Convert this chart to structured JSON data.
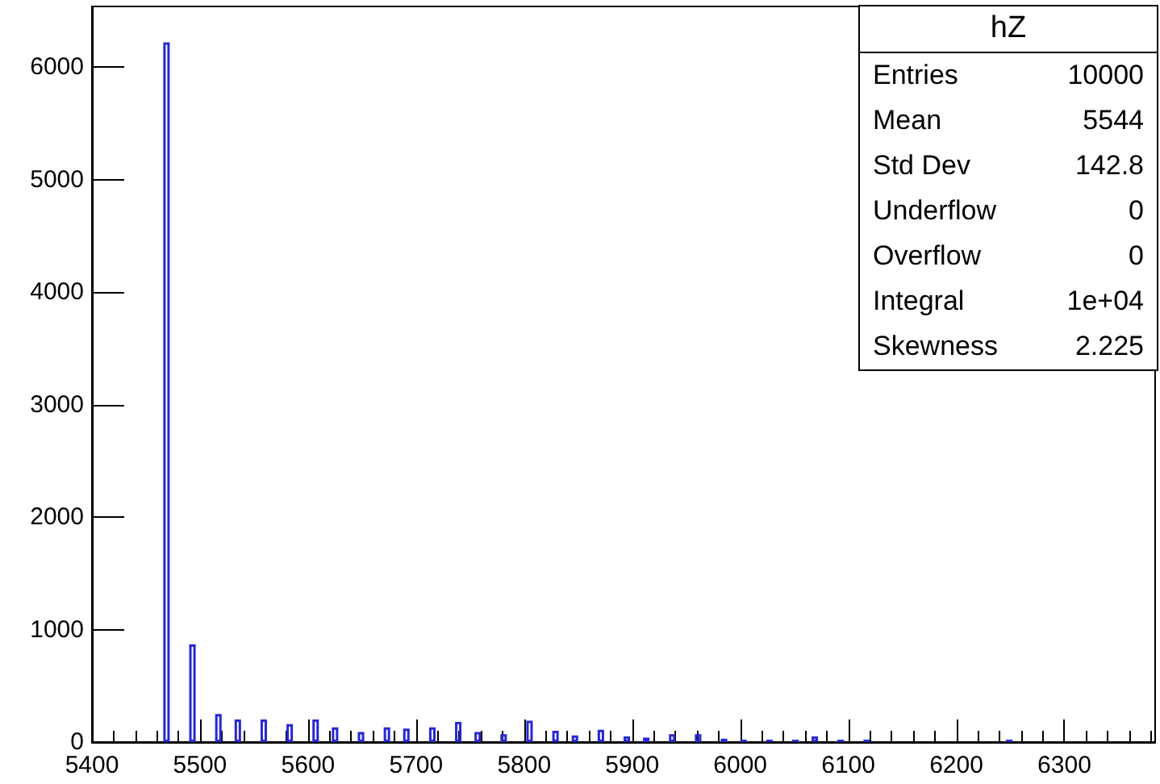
{
  "chart_data": {
    "type": "histogram",
    "bins": [
      5466,
      5472,
      5490,
      5496,
      5514,
      5520,
      5532,
      5538,
      5556,
      5562,
      5580,
      5586,
      5604,
      5610,
      5622,
      5628,
      5646,
      5652,
      5670,
      5676,
      5688,
      5694,
      5712,
      5718,
      5736,
      5742,
      5754,
      5760,
      5778,
      5784,
      5802,
      5808,
      5826,
      5832,
      5844,
      5850,
      5868,
      5874,
      5892,
      5898,
      5910,
      5916,
      5934,
      5940,
      5958,
      5964,
      5982,
      5988,
      6000,
      6006,
      6024,
      6030,
      6048,
      6054,
      6066,
      6072,
      6090,
      6096,
      6114,
      6120,
      6246,
      6252
    ],
    "values": [
      6220,
      0,
      870,
      0,
      250,
      0,
      200,
      0,
      200,
      0,
      160,
      0,
      200,
      0,
      130,
      0,
      90,
      0,
      130,
      0,
      120,
      0,
      130,
      0,
      180,
      0,
      90,
      0,
      70,
      0,
      190,
      0,
      100,
      0,
      60,
      0,
      110,
      0,
      50,
      0,
      40,
      0,
      70,
      0,
      70,
      0,
      30,
      0,
      20,
      0,
      20,
      0,
      20,
      0,
      50,
      0,
      20,
      0,
      20,
      0,
      20
    ],
    "color": "#2828d2",
    "xlim": [
      5400,
      6384
    ],
    "xticks": [
      5400,
      5500,
      5600,
      5700,
      5800,
      5900,
      6000,
      6100,
      6200,
      6300
    ],
    "ylim": [
      0,
      6540
    ],
    "yticks": [
      0,
      1000,
      2000,
      3000,
      4000,
      5000,
      6000
    ],
    "annotations": [
      "hZ",
      "Entries",
      "10000",
      "Mean",
      "5544",
      "Std Dev",
      "142.8",
      "Underflow",
      "0",
      "Overflow",
      "0",
      "Integral",
      "1e+04",
      "Skewness",
      "2.225"
    ]
  }
}
